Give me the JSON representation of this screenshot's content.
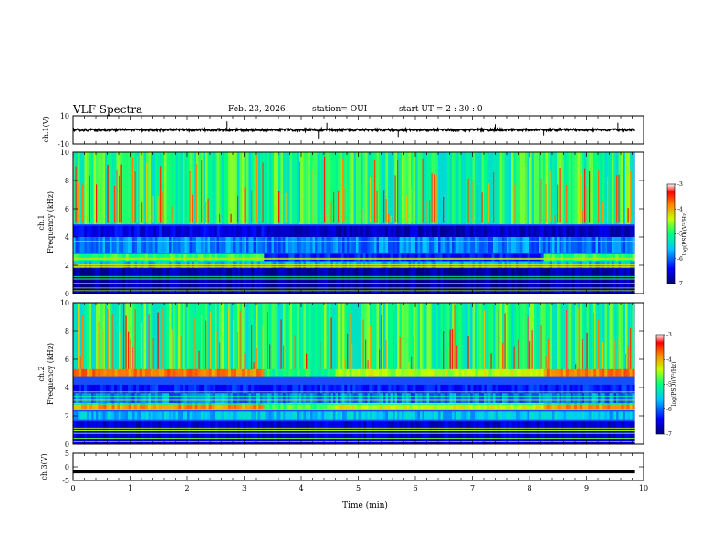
{
  "header": {
    "title": "VLF Spectra",
    "date": "Feb. 23, 2026",
    "station": "station= OUI",
    "start": "start  UT  =   2  : 30 : 0"
  },
  "chart_data": [
    {
      "type": "line",
      "panel": "ch1-waveform",
      "ylabel": "ch.1(V)",
      "ylim": [
        -10,
        10
      ],
      "yticks": [
        "10",
        "-10"
      ],
      "baseline_value": 0,
      "noise_amplitude": 0.8,
      "spike_positions_min": [
        2.7,
        4.3,
        4.45,
        5.7,
        7.4,
        8.25,
        9.55
      ],
      "spike_values": [
        6,
        -6,
        5,
        -5,
        4,
        -4,
        5
      ],
      "color": "#000000"
    },
    {
      "type": "heatmap",
      "panel": "ch1-spectrogram",
      "ylabel": "ch.1\nFrequency (kHz)",
      "ylim": [
        0,
        10
      ],
      "yticks": [
        "0",
        "2",
        "4",
        "6",
        "8",
        "10"
      ],
      "xlim": [
        0,
        10
      ],
      "bands": [
        {
          "f_low": 4.0,
          "f_high": 4.8,
          "segments": [
            [
              0,
              3.35,
              -6.5
            ],
            [
              3.35,
              9.85,
              -6.7
            ]
          ]
        },
        {
          "f_low": 2.3,
          "f_high": 2.8,
          "segments": [
            [
              0,
              3.35,
              -4.9
            ],
            [
              3.35,
              4.6,
              -6.3
            ],
            [
              4.6,
              8.25,
              -6.3
            ],
            [
              8.25,
              9.85,
              -4.9
            ]
          ]
        },
        {
          "f_low": 0.0,
          "f_high": 1.8,
          "segments": [
            [
              0,
              9.85,
              -6.8
            ]
          ]
        }
      ],
      "colorbar": {
        "label": "log(PSD)(V²/Hz)",
        "range": [
          -7,
          -3
        ],
        "ticks": [
          "-3",
          "-4",
          "-5",
          "-6",
          "-7"
        ]
      }
    },
    {
      "type": "heatmap",
      "panel": "ch2-spectrogram",
      "ylabel": "ch.2\nFrequency (kHz)",
      "ylim": [
        0,
        10
      ],
      "yticks": [
        "0",
        "2",
        "4",
        "6",
        "8",
        "10"
      ],
      "xlim": [
        0,
        10
      ],
      "bands": [
        {
          "f_low": 4.8,
          "f_high": 5.3,
          "segments": [
            [
              0,
              3.35,
              -3.8
            ],
            [
              3.35,
              4.6,
              -5.0
            ],
            [
              4.6,
              8.25,
              -4.5
            ],
            [
              8.25,
              9.85,
              -3.8
            ]
          ]
        },
        {
          "f_low": 2.4,
          "f_high": 2.9,
          "segments": [
            [
              0,
              3.35,
              -3.9
            ],
            [
              3.35,
              4.6,
              -4.8
            ],
            [
              4.6,
              8.25,
              -4.4
            ],
            [
              8.25,
              9.85,
              -3.9
            ]
          ]
        },
        {
          "f_low": 3.6,
          "f_high": 4.2,
          "segments": [
            [
              0,
              9.85,
              -6.3
            ]
          ]
        },
        {
          "f_low": 0.0,
          "f_high": 1.6,
          "segments": [
            [
              0,
              9.85,
              -6.6
            ]
          ]
        }
      ],
      "colorbar": {
        "label": "log(PSD)(V²/Hz)",
        "range": [
          -7,
          -3
        ],
        "ticks": [
          "-3",
          "-4",
          "-5",
          "-6",
          "-7"
        ]
      }
    },
    {
      "type": "line",
      "panel": "ch3-waveform",
      "ylabel": "ch.3(V)",
      "ylim": [
        -5,
        5
      ],
      "yticks": [
        "5",
        "0",
        "-5"
      ],
      "baseline_value": -1.7,
      "xlabel": "Time (min)",
      "xlim": [
        0,
        10
      ],
      "xticks": [
        "0",
        "1",
        "2",
        "3",
        "4",
        "5",
        "6",
        "7",
        "8",
        "9",
        "10"
      ],
      "color": "#000000"
    }
  ]
}
